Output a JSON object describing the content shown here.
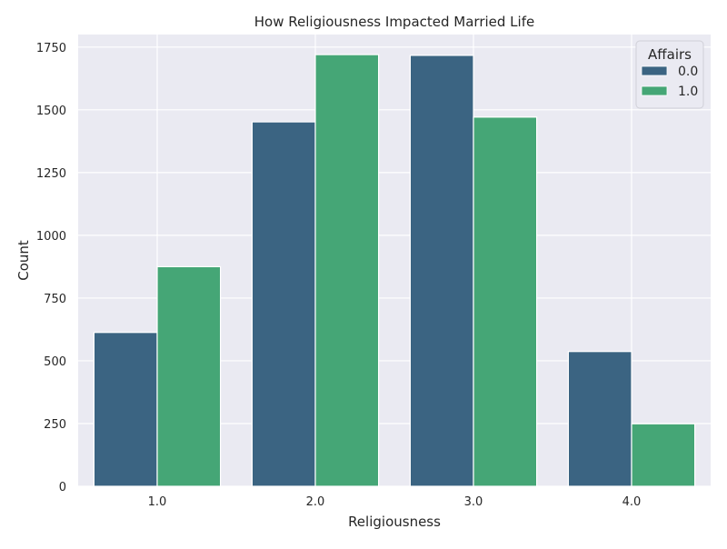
{
  "chart_data": {
    "type": "bar",
    "title": "How Religiousness Impacted Married Life",
    "xlabel": "Religiousness",
    "ylabel": "Count",
    "categories": [
      "1.0",
      "2.0",
      "3.0",
      "4.0"
    ],
    "ylim": [
      0,
      1800
    ],
    "yticks": [
      0,
      250,
      500,
      750,
      1000,
      1250,
      1500,
      1750
    ],
    "grid": true,
    "legend": {
      "title": "Affairs",
      "placement": "top-right"
    },
    "series": [
      {
        "name": "0.0",
        "color": "#3b6482",
        "values": [
          613,
          1452,
          1717,
          537
        ]
      },
      {
        "name": "1.0",
        "color": "#45a676",
        "values": [
          875,
          1720,
          1471,
          249
        ]
      }
    ]
  }
}
